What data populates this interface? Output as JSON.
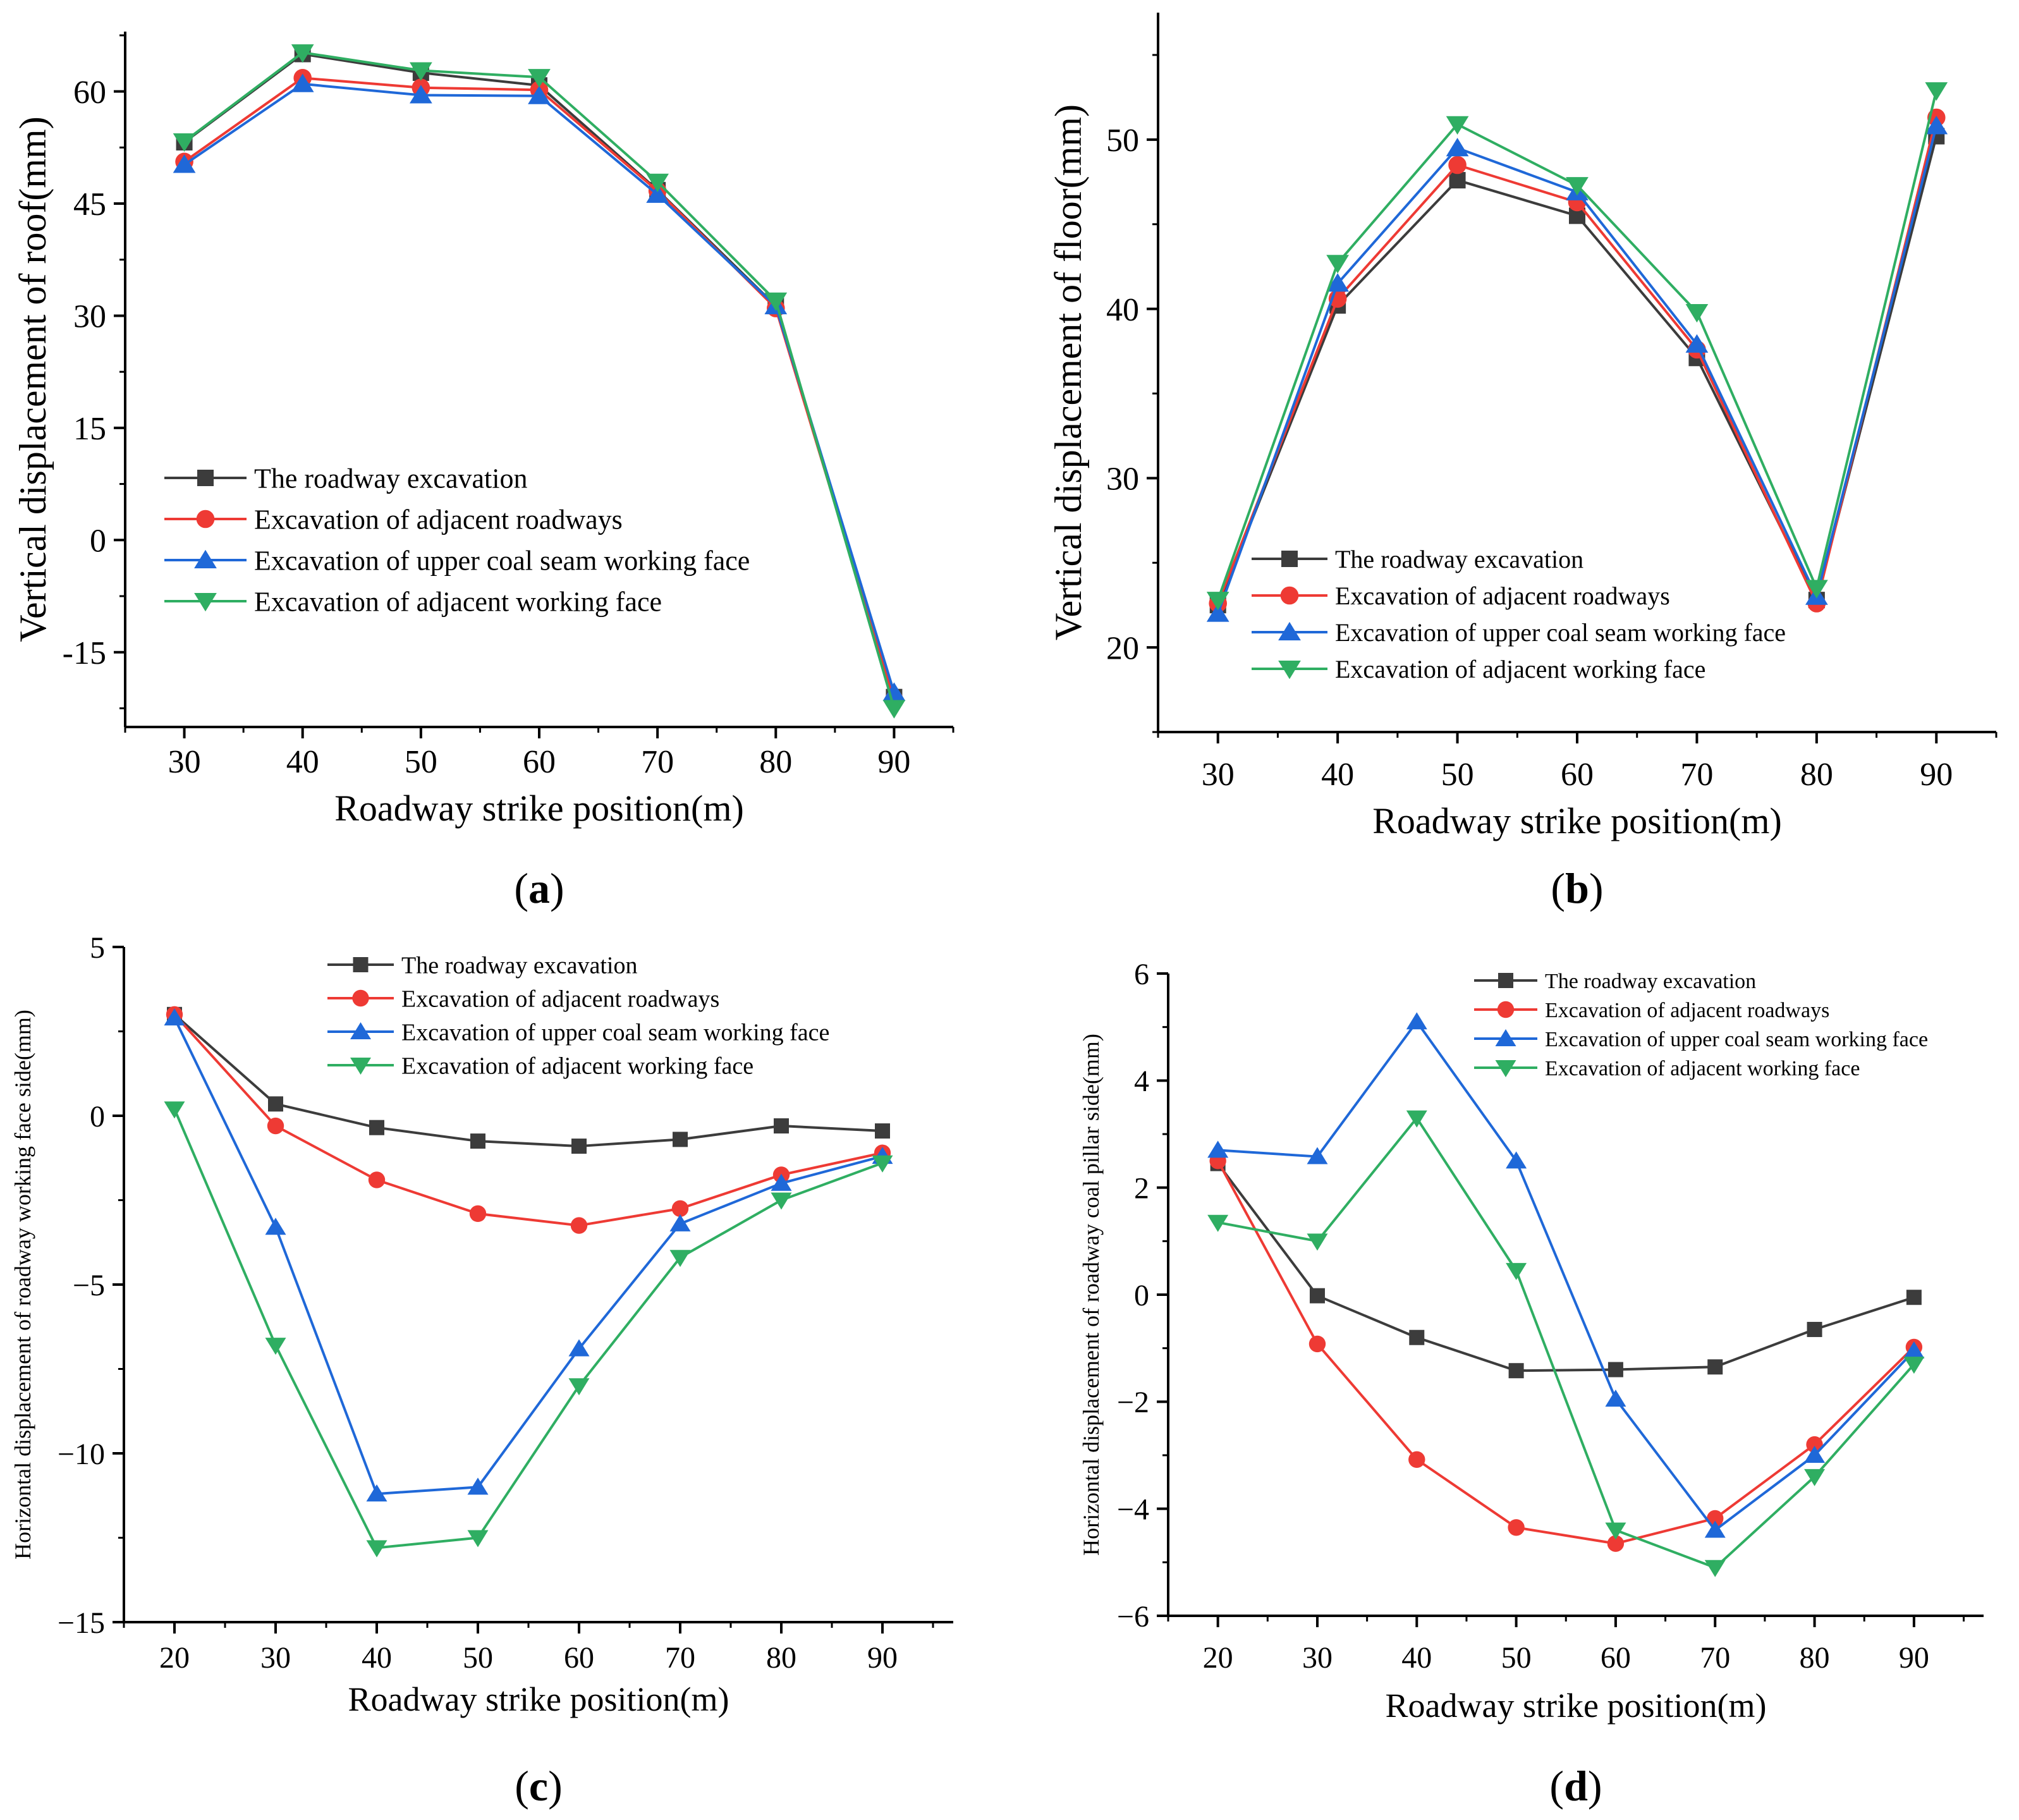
{
  "panels": [
    {
      "label": "(a)",
      "chart_data": {
        "type": "line",
        "title": "",
        "xlabel": "Roadway strike position(m)",
        "ylabel": "Vertical displacement of roof(mm)",
        "x": [
          30,
          40,
          50,
          60,
          70,
          80,
          90
        ],
        "xticks": [
          "30",
          "40",
          "50",
          "60",
          "70",
          "80",
          "90"
        ],
        "yticks": [
          "-15",
          "0",
          "15",
          "30",
          "45",
          "60"
        ],
        "xlim": [
          25,
          95
        ],
        "ylim": [
          -25,
          68
        ],
        "grid": false,
        "legend_position": "lower-left",
        "series": [
          {
            "name": "The roadway excavation",
            "marker": "square",
            "color": "#3c3c3c",
            "values": [
              53.2,
              65.0,
              62.5,
              60.8,
              46.8,
              31.3,
              -21.0
            ]
          },
          {
            "name": "Excavation of adjacent roadways",
            "marker": "circle",
            "color": "#ee3a34",
            "values": [
              50.6,
              61.8,
              60.5,
              60.2,
              46.7,
              31.0,
              -21.3
            ]
          },
          {
            "name": "Excavation of upper coal seam working face",
            "marker": "triangle-up",
            "color": "#1f68d8",
            "values": [
              50.2,
              61.0,
              59.5,
              59.4,
              46.2,
              31.3,
              -20.4
            ]
          },
          {
            "name": "Excavation of adjacent working face",
            "marker": "triangle-down",
            "color": "#2fae62",
            "values": [
              53.3,
              65.2,
              62.8,
              61.9,
              47.9,
              32.0,
              -22.5
            ]
          }
        ]
      }
    },
    {
      "label": "(b)",
      "chart_data": {
        "type": "line",
        "title": "",
        "xlabel": "Roadway strike position(m)",
        "ylabel": "Vertical displacement of floor(mm)",
        "x": [
          30,
          40,
          50,
          60,
          70,
          80,
          90
        ],
        "xticks": [
          "30",
          "40",
          "50",
          "60",
          "70",
          "80",
          "90"
        ],
        "yticks": [
          "20",
          "30",
          "40",
          "50"
        ],
        "xlim": [
          25,
          95
        ],
        "ylim": [
          15,
          57.5
        ],
        "grid": false,
        "legend_position": "lower-left",
        "series": [
          {
            "name": "The roadway excavation",
            "marker": "square",
            "color": "#3c3c3c",
            "values": [
              22.5,
              40.2,
              47.6,
              45.5,
              37.1,
              22.8,
              50.2
            ]
          },
          {
            "name": "Excavation of adjacent roadways",
            "marker": "circle",
            "color": "#ee3a34",
            "values": [
              22.6,
              40.6,
              48.5,
              46.3,
              37.6,
              22.6,
              51.3
            ]
          },
          {
            "name": "Excavation of upper coal seam working face",
            "marker": "triangle-up",
            "color": "#1f68d8",
            "values": [
              22.0,
              41.5,
              49.5,
              46.9,
              37.9,
              23.0,
              50.8
            ]
          },
          {
            "name": "Excavation of adjacent working face",
            "marker": "triangle-down",
            "color": "#2fae62",
            "values": [
              22.8,
              42.7,
              50.9,
              47.3,
              39.8,
              23.5,
              52.9
            ]
          }
        ]
      }
    },
    {
      "label": "(c)",
      "chart_data": {
        "type": "line",
        "title": "",
        "xlabel": "Roadway strike position(m)",
        "ylabel": "Horizontal displacement of roadway working face side(mm)",
        "x": [
          20,
          30,
          40,
          50,
          60,
          70,
          80,
          90
        ],
        "xticks": [
          "20",
          "30",
          "40",
          "50",
          "60",
          "70",
          "80",
          "90"
        ],
        "yticks": [
          "−15",
          "−10",
          "−5",
          "0",
          "5"
        ],
        "xlim": [
          15,
          97
        ],
        "ylim": [
          -15,
          5
        ],
        "grid": false,
        "legend_position": "top-right",
        "series": [
          {
            "name": "The roadway excavation",
            "marker": "square",
            "color": "#3c3c3c",
            "values": [
              3.0,
              0.35,
              -0.35,
              -0.75,
              -0.9,
              -0.7,
              -0.3,
              -0.45
            ]
          },
          {
            "name": "Excavation of adjacent roadways",
            "marker": "circle",
            "color": "#ee3a34",
            "values": [
              3.0,
              -0.3,
              -1.9,
              -2.9,
              -3.25,
              -2.75,
              -1.75,
              -1.1
            ]
          },
          {
            "name": "Excavation of upper coal seam working face",
            "marker": "triangle-up",
            "color": "#1f68d8",
            "values": [
              2.9,
              -3.3,
              -11.2,
              -11.0,
              -6.9,
              -3.2,
              -2.0,
              -1.2
            ]
          },
          {
            "name": "Excavation of adjacent working face",
            "marker": "triangle-down",
            "color": "#2fae62",
            "values": [
              0.2,
              -6.8,
              -12.8,
              -12.5,
              -8.0,
              -4.2,
              -2.5,
              -1.4
            ]
          }
        ]
      }
    },
    {
      "label": "(d)",
      "chart_data": {
        "type": "line",
        "title": "",
        "xlabel": "Roadway strike position(m)",
        "ylabel": "Horizontal displacement of roadway coal pillar side(mm)",
        "x": [
          20,
          30,
          40,
          50,
          60,
          70,
          80,
          90
        ],
        "xticks": [
          "20",
          "30",
          "40",
          "50",
          "60",
          "70",
          "80",
          "90"
        ],
        "yticks": [
          "−6",
          "−4",
          "−2",
          "0",
          "2",
          "4",
          "6"
        ],
        "xlim": [
          15,
          97
        ],
        "ylim": [
          -6,
          6
        ],
        "grid": false,
        "legend_position": "top-right",
        "series": [
          {
            "name": "The roadway excavation",
            "marker": "square",
            "color": "#3c3c3c",
            "values": [
              2.45,
              -0.02,
              -0.8,
              -1.42,
              -1.4,
              -1.35,
              -0.65,
              -0.05
            ]
          },
          {
            "name": "Excavation of adjacent roadways",
            "marker": "circle",
            "color": "#ee3a34",
            "values": [
              2.5,
              -0.92,
              -3.08,
              -4.35,
              -4.65,
              -4.18,
              -2.8,
              -0.98
            ]
          },
          {
            "name": "Excavation of upper coal seam working face",
            "marker": "triangle-up",
            "color": "#1f68d8",
            "values": [
              2.7,
              2.58,
              5.1,
              2.5,
              -1.95,
              -4.4,
              -3.0,
              -1.05
            ]
          },
          {
            "name": "Excavation of adjacent working face",
            "marker": "triangle-down",
            "color": "#2fae62",
            "values": [
              1.35,
              1.0,
              3.3,
              0.45,
              -4.4,
              -5.1,
              -3.4,
              -1.3
            ]
          }
        ]
      }
    }
  ]
}
